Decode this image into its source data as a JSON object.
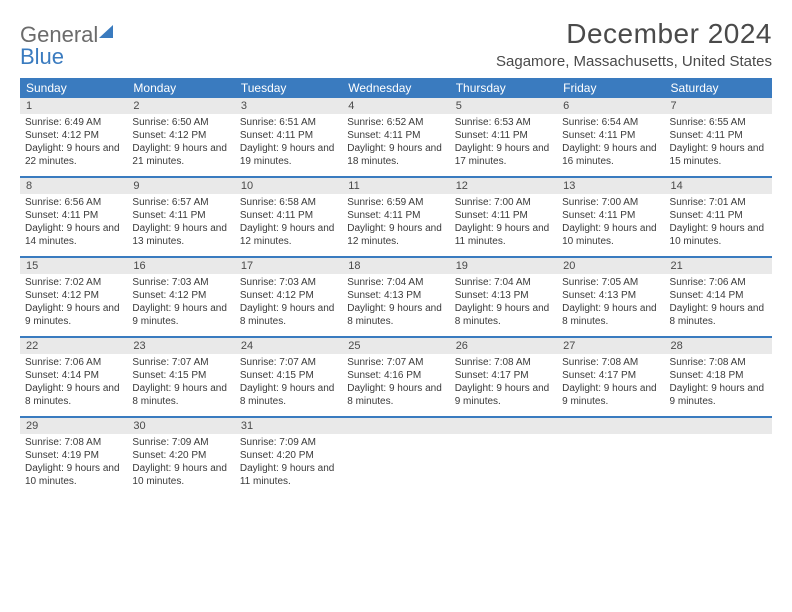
{
  "logo": {
    "part1": "General",
    "part2": "Blue"
  },
  "title": "December 2024",
  "location": "Sagamore, Massachusetts, United States",
  "day_headers": [
    "Sunday",
    "Monday",
    "Tuesday",
    "Wednesday",
    "Thursday",
    "Friday",
    "Saturday"
  ],
  "colors": {
    "header_bg": "#3a7bbf",
    "header_text": "#ffffff",
    "daynum_bg": "#e9e9e9",
    "text": "#3a3a3a",
    "title_text": "#4a4a4a",
    "border": "#3a7bbf"
  },
  "weeks": [
    [
      {
        "n": "1",
        "sr": "Sunrise: 6:49 AM",
        "ss": "Sunset: 4:12 PM",
        "dl": "Daylight: 9 hours and 22 minutes."
      },
      {
        "n": "2",
        "sr": "Sunrise: 6:50 AM",
        "ss": "Sunset: 4:12 PM",
        "dl": "Daylight: 9 hours and 21 minutes."
      },
      {
        "n": "3",
        "sr": "Sunrise: 6:51 AM",
        "ss": "Sunset: 4:11 PM",
        "dl": "Daylight: 9 hours and 19 minutes."
      },
      {
        "n": "4",
        "sr": "Sunrise: 6:52 AM",
        "ss": "Sunset: 4:11 PM",
        "dl": "Daylight: 9 hours and 18 minutes."
      },
      {
        "n": "5",
        "sr": "Sunrise: 6:53 AM",
        "ss": "Sunset: 4:11 PM",
        "dl": "Daylight: 9 hours and 17 minutes."
      },
      {
        "n": "6",
        "sr": "Sunrise: 6:54 AM",
        "ss": "Sunset: 4:11 PM",
        "dl": "Daylight: 9 hours and 16 minutes."
      },
      {
        "n": "7",
        "sr": "Sunrise: 6:55 AM",
        "ss": "Sunset: 4:11 PM",
        "dl": "Daylight: 9 hours and 15 minutes."
      }
    ],
    [
      {
        "n": "8",
        "sr": "Sunrise: 6:56 AM",
        "ss": "Sunset: 4:11 PM",
        "dl": "Daylight: 9 hours and 14 minutes."
      },
      {
        "n": "9",
        "sr": "Sunrise: 6:57 AM",
        "ss": "Sunset: 4:11 PM",
        "dl": "Daylight: 9 hours and 13 minutes."
      },
      {
        "n": "10",
        "sr": "Sunrise: 6:58 AM",
        "ss": "Sunset: 4:11 PM",
        "dl": "Daylight: 9 hours and 12 minutes."
      },
      {
        "n": "11",
        "sr": "Sunrise: 6:59 AM",
        "ss": "Sunset: 4:11 PM",
        "dl": "Daylight: 9 hours and 12 minutes."
      },
      {
        "n": "12",
        "sr": "Sunrise: 7:00 AM",
        "ss": "Sunset: 4:11 PM",
        "dl": "Daylight: 9 hours and 11 minutes."
      },
      {
        "n": "13",
        "sr": "Sunrise: 7:00 AM",
        "ss": "Sunset: 4:11 PM",
        "dl": "Daylight: 9 hours and 10 minutes."
      },
      {
        "n": "14",
        "sr": "Sunrise: 7:01 AM",
        "ss": "Sunset: 4:11 PM",
        "dl": "Daylight: 9 hours and 10 minutes."
      }
    ],
    [
      {
        "n": "15",
        "sr": "Sunrise: 7:02 AM",
        "ss": "Sunset: 4:12 PM",
        "dl": "Daylight: 9 hours and 9 minutes."
      },
      {
        "n": "16",
        "sr": "Sunrise: 7:03 AM",
        "ss": "Sunset: 4:12 PM",
        "dl": "Daylight: 9 hours and 9 minutes."
      },
      {
        "n": "17",
        "sr": "Sunrise: 7:03 AM",
        "ss": "Sunset: 4:12 PM",
        "dl": "Daylight: 9 hours and 8 minutes."
      },
      {
        "n": "18",
        "sr": "Sunrise: 7:04 AM",
        "ss": "Sunset: 4:13 PM",
        "dl": "Daylight: 9 hours and 8 minutes."
      },
      {
        "n": "19",
        "sr": "Sunrise: 7:04 AM",
        "ss": "Sunset: 4:13 PM",
        "dl": "Daylight: 9 hours and 8 minutes."
      },
      {
        "n": "20",
        "sr": "Sunrise: 7:05 AM",
        "ss": "Sunset: 4:13 PM",
        "dl": "Daylight: 9 hours and 8 minutes."
      },
      {
        "n": "21",
        "sr": "Sunrise: 7:06 AM",
        "ss": "Sunset: 4:14 PM",
        "dl": "Daylight: 9 hours and 8 minutes."
      }
    ],
    [
      {
        "n": "22",
        "sr": "Sunrise: 7:06 AM",
        "ss": "Sunset: 4:14 PM",
        "dl": "Daylight: 9 hours and 8 minutes."
      },
      {
        "n": "23",
        "sr": "Sunrise: 7:07 AM",
        "ss": "Sunset: 4:15 PM",
        "dl": "Daylight: 9 hours and 8 minutes."
      },
      {
        "n": "24",
        "sr": "Sunrise: 7:07 AM",
        "ss": "Sunset: 4:15 PM",
        "dl": "Daylight: 9 hours and 8 minutes."
      },
      {
        "n": "25",
        "sr": "Sunrise: 7:07 AM",
        "ss": "Sunset: 4:16 PM",
        "dl": "Daylight: 9 hours and 8 minutes."
      },
      {
        "n": "26",
        "sr": "Sunrise: 7:08 AM",
        "ss": "Sunset: 4:17 PM",
        "dl": "Daylight: 9 hours and 9 minutes."
      },
      {
        "n": "27",
        "sr": "Sunrise: 7:08 AM",
        "ss": "Sunset: 4:17 PM",
        "dl": "Daylight: 9 hours and 9 minutes."
      },
      {
        "n": "28",
        "sr": "Sunrise: 7:08 AM",
        "ss": "Sunset: 4:18 PM",
        "dl": "Daylight: 9 hours and 9 minutes."
      }
    ],
    [
      {
        "n": "29",
        "sr": "Sunrise: 7:08 AM",
        "ss": "Sunset: 4:19 PM",
        "dl": "Daylight: 9 hours and 10 minutes."
      },
      {
        "n": "30",
        "sr": "Sunrise: 7:09 AM",
        "ss": "Sunset: 4:20 PM",
        "dl": "Daylight: 9 hours and 10 minutes."
      },
      {
        "n": "31",
        "sr": "Sunrise: 7:09 AM",
        "ss": "Sunset: 4:20 PM",
        "dl": "Daylight: 9 hours and 11 minutes."
      },
      {
        "empty": true
      },
      {
        "empty": true
      },
      {
        "empty": true
      },
      {
        "empty": true
      }
    ]
  ]
}
